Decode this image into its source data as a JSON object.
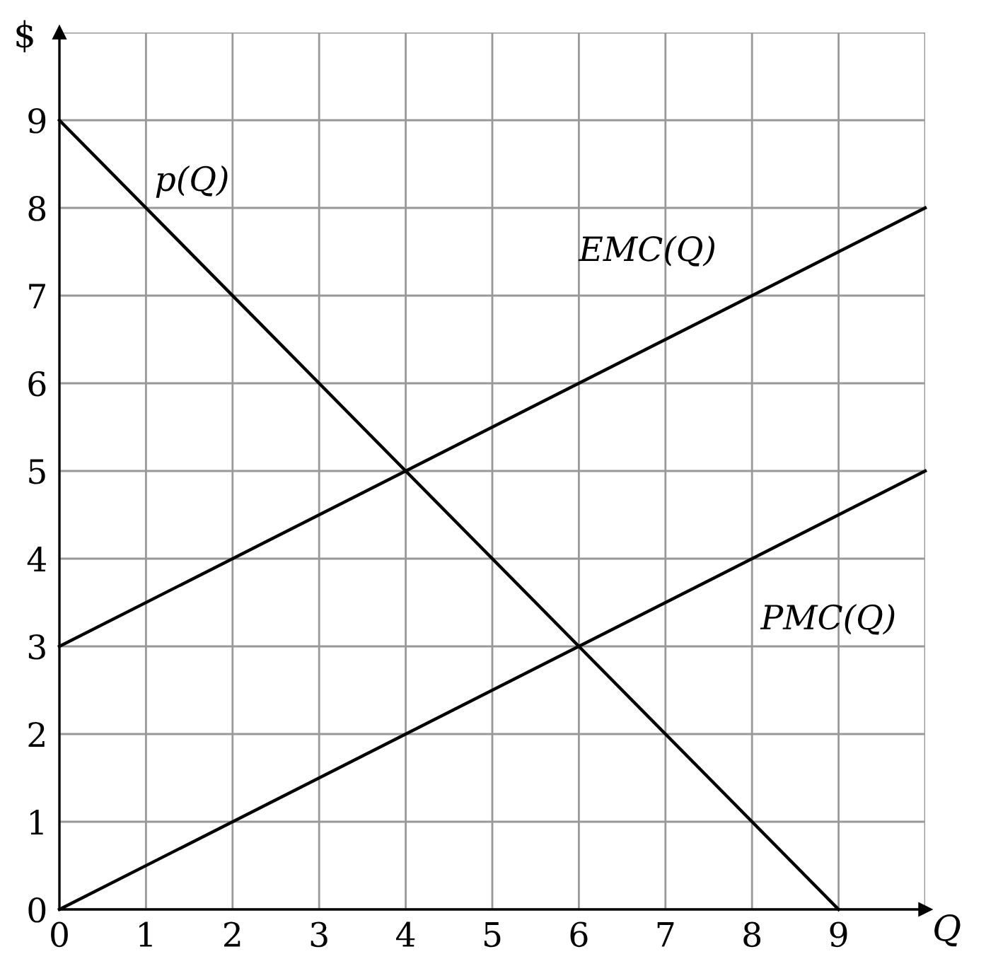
{
  "chart_data": {
    "type": "line",
    "xlabel": "Q",
    "ylabel": "$",
    "series": [
      {
        "x": [
          0,
          9
        ],
        "values": [
          9,
          0
        ],
        "color": "#000000"
      },
      {
        "x": [
          0,
          10
        ],
        "values": [
          3,
          8
        ],
        "color": "#000000"
      },
      {
        "x": [
          0,
          10
        ],
        "values": [
          0,
          5
        ],
        "color": "#000000"
      }
    ],
    "annotations": [
      "p(Q)",
      "EMC(Q)",
      "PMC(Q)"
    ],
    "xlim": [
      0,
      10
    ],
    "ylim": [
      0,
      10
    ],
    "xticks": [
      0,
      1,
      2,
      3,
      4,
      5,
      6,
      7,
      8,
      9,
      {
        "value": 10,
        "label": null
      }
    ],
    "yticks": [
      0,
      1,
      2,
      3,
      4,
      5,
      6,
      7,
      8,
      9,
      {
        "value": 10,
        "label": null
      }
    ],
    "grid": true,
    "line_style": "solid",
    "marker": "none"
  }
}
